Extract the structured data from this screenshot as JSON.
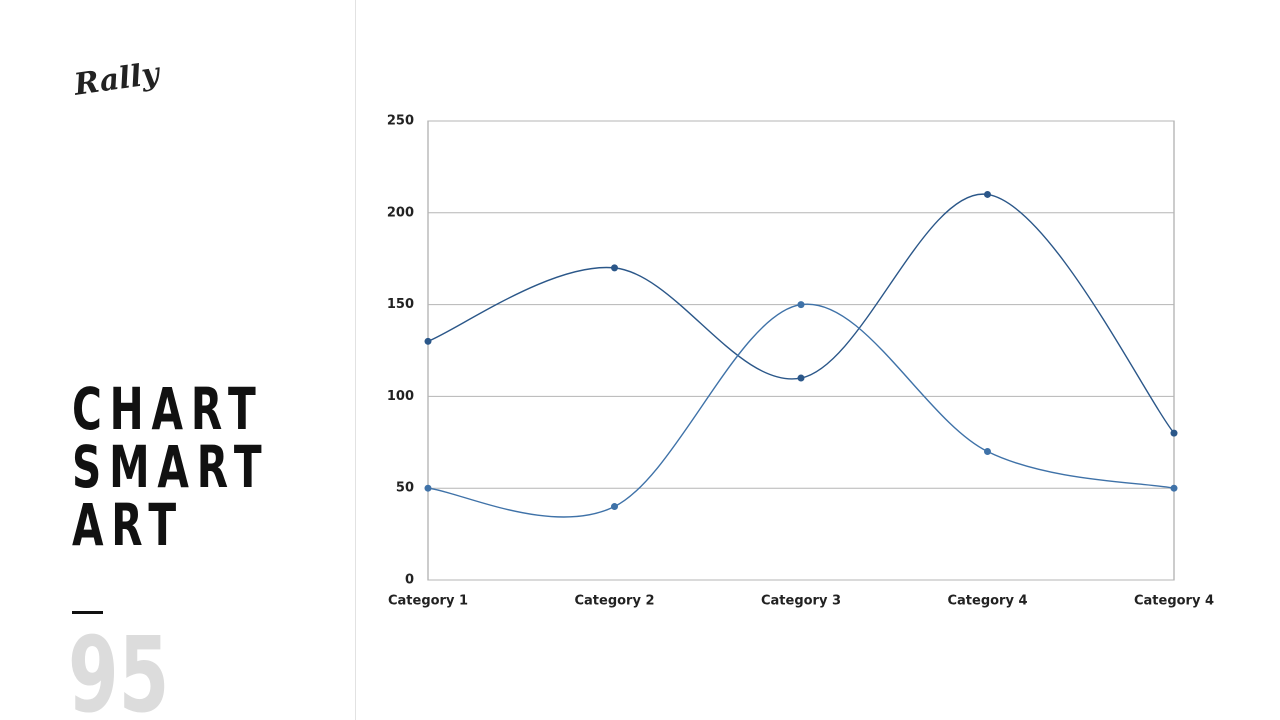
{
  "slide": {
    "logo": "Rally",
    "title_lines": [
      "CHART",
      "SMART",
      "ART"
    ],
    "page_number": "95"
  },
  "chart_data": {
    "type": "line",
    "smooth": true,
    "grid": true,
    "categories": [
      "Category 1",
      "Category 2",
      "Category 3",
      "Category 4",
      "Category 4"
    ],
    "series": [
      {
        "color": "#2b5789",
        "values": [
          130,
          170,
          110,
          210,
          80
        ]
      },
      {
        "color": "#3f72a8",
        "values": [
          50,
          40,
          150,
          70,
          50
        ]
      }
    ],
    "ylim": [
      0,
      250
    ],
    "yticks": [
      0,
      50,
      100,
      150,
      200,
      250
    ]
  }
}
